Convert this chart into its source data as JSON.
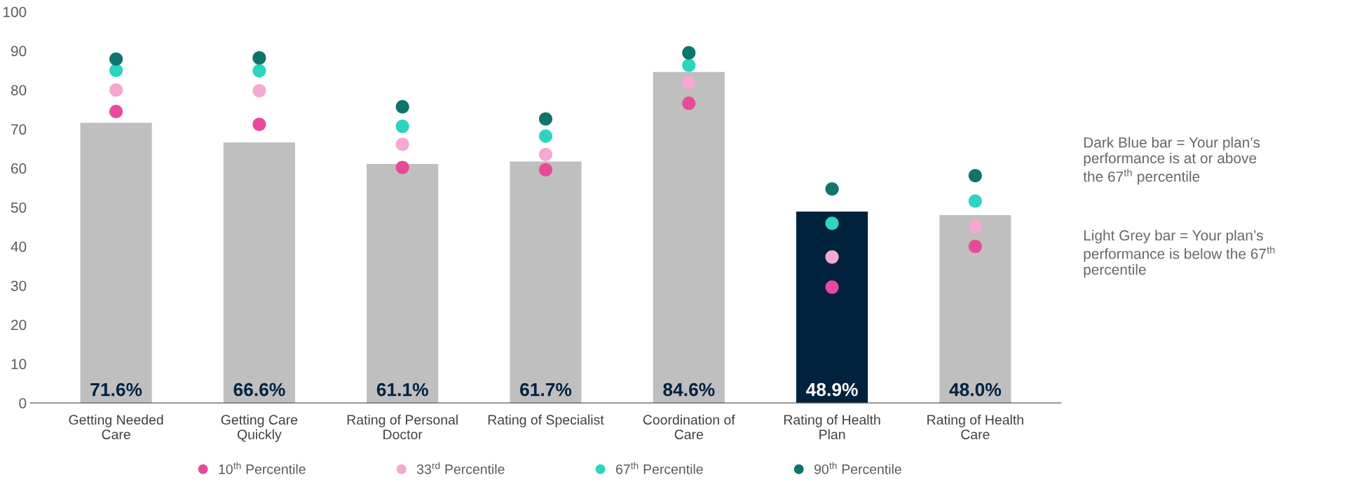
{
  "chart_data": {
    "type": "bar",
    "categories": [
      "Getting Needed\nCare",
      "Getting Care\nQuickly",
      "Rating of Personal\nDoctor",
      "Rating of Specialist",
      "Coordination of\nCare",
      "Rating of Health\nPlan",
      "Rating of Health\nCare"
    ],
    "values": [
      71.6,
      66.6,
      61.1,
      61.7,
      84.6,
      48.9,
      48.0
    ],
    "colors": [
      "#bfbfbf",
      "#bfbfbf",
      "#bfbfbf",
      "#bfbfbf",
      "#bfbfbf",
      "#00223d",
      "#bfbfbf"
    ],
    "value_labels": [
      "71.6%",
      "66.6%",
      "61.1%",
      "61.7%",
      "84.6%",
      "48.9%",
      "48.0%"
    ],
    "series": [
      {
        "type": "scatter",
        "name": "10$^{th}$ Percentile",
        "color": "#e84a9a",
        "values": [
          74.5,
          71.2,
          60.2,
          59.6,
          76.6,
          29.6,
          40.0
        ]
      },
      {
        "type": "scatter",
        "name": "33$^{rd}$ Percentile",
        "color": "#f5a8d2",
        "values": [
          80.0,
          79.8,
          66.1,
          63.5,
          81.9,
          37.3,
          45.2
        ]
      },
      {
        "type": "scatter",
        "name": "67$^{th}$ Percentile",
        "color": "#2dd4bf",
        "values": [
          85.0,
          84.9,
          70.7,
          68.2,
          86.3,
          45.9,
          51.6
        ]
      },
      {
        "type": "scatter",
        "name": "90$^{th}$ Percentile",
        "color": "#0e756c",
        "values": [
          87.9,
          88.2,
          75.7,
          72.6,
          89.5,
          54.7,
          58.1
        ]
      }
    ],
    "ylim": [
      0,
      100
    ],
    "yticks": [
      0,
      10,
      20,
      30,
      40,
      50,
      60,
      70,
      80,
      90,
      100
    ],
    "legend": "bottom",
    "marker": "circle",
    "annotations": [
      "Dark Blue bar = Your plan’s performance is at or above the 67$^{th}$ percentile",
      "Light Grey bar = Your plan’s performance is below the 67$^{th}$ percentile"
    ]
  }
}
